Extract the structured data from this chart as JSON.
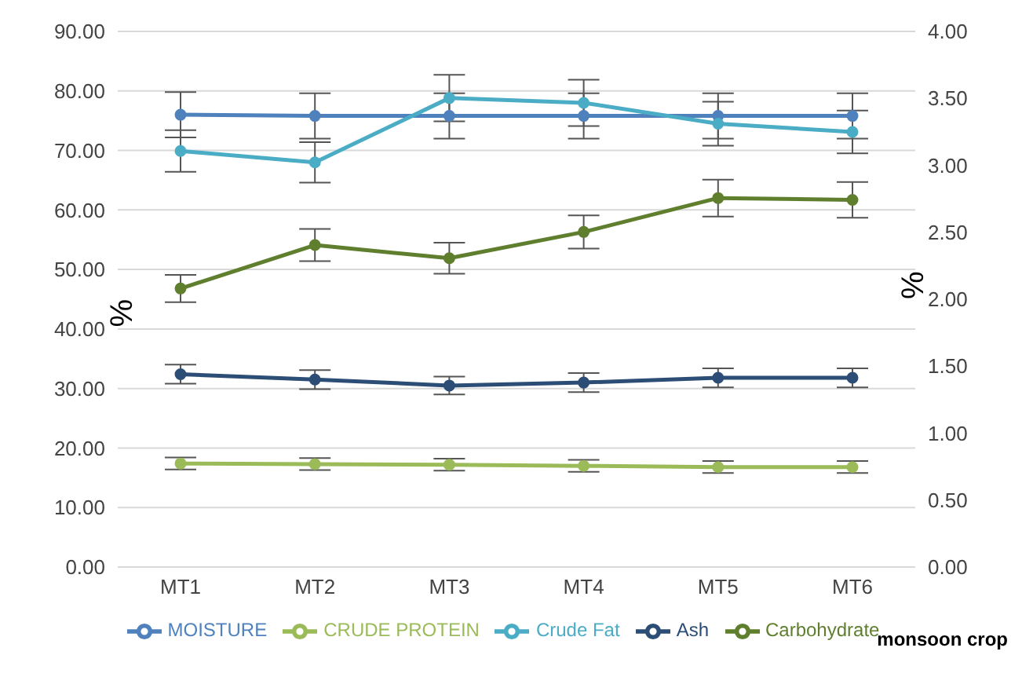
{
  "chart_data": {
    "type": "line",
    "categories": [
      "MT1",
      "MT2",
      "MT3",
      "MT4",
      "MT5",
      "MT6"
    ],
    "series": [
      {
        "name": "MOISTURE",
        "color": "#4f81bd",
        "values": [
          76.0,
          75.8,
          75.8,
          75.8,
          75.8,
          75.8
        ],
        "errors": [
          3.8,
          3.8,
          3.8,
          3.8,
          3.8,
          3.8
        ]
      },
      {
        "name": "CRUDE PROTEIN",
        "color": "#9bbb59",
        "values": [
          17.4,
          17.3,
          17.2,
          17.0,
          16.8,
          16.8
        ],
        "errors": [
          1.0,
          1.0,
          1.0,
          1.0,
          1.0,
          1.0
        ]
      },
      {
        "name": "Crude Fat",
        "color": "#4bacc6",
        "values": [
          69.9,
          68.0,
          78.8,
          78.0,
          74.5,
          73.1
        ],
        "errors": [
          3.5,
          3.4,
          3.9,
          3.9,
          3.7,
          3.6
        ]
      },
      {
        "name": "Ash",
        "color": "#2c4d75",
        "values": [
          32.4,
          31.5,
          30.5,
          31.0,
          31.8,
          31.8
        ],
        "errors": [
          1.6,
          1.6,
          1.5,
          1.6,
          1.6,
          1.6
        ]
      },
      {
        "name": "Carbohydrate",
        "color": "#5f7f2e",
        "values": [
          46.8,
          54.1,
          51.9,
          56.3,
          62.0,
          61.7
        ],
        "errors": [
          2.3,
          2.7,
          2.6,
          2.8,
          3.1,
          3.0
        ]
      }
    ],
    "ylabel": "%",
    "y2label": "%",
    "ylim": [
      0,
      90
    ],
    "yticks": [
      {
        "value": 0,
        "label": "0.00"
      },
      {
        "value": 10,
        "label": "10.00"
      },
      {
        "value": 20,
        "label": "20.00"
      },
      {
        "value": 30,
        "label": "30.00"
      },
      {
        "value": 40,
        "label": "40.00"
      },
      {
        "value": 50,
        "label": "50.00"
      },
      {
        "value": 60,
        "label": "60.00"
      },
      {
        "value": 70,
        "label": "70.00"
      },
      {
        "value": 80,
        "label": "80.00"
      },
      {
        "value": 90,
        "label": "90.00"
      }
    ],
    "y2lim": [
      0,
      4
    ],
    "y2ticks": [
      {
        "value": 0,
        "label": "0.00"
      },
      {
        "value": 0.5,
        "label": "0.50"
      },
      {
        "value": 1,
        "label": "1.00"
      },
      {
        "value": 1.5,
        "label": "1.50"
      },
      {
        "value": 2,
        "label": "2.00"
      },
      {
        "value": 2.5,
        "label": "2.50"
      },
      {
        "value": 3,
        "label": "3.00"
      },
      {
        "value": 3.5,
        "label": "3.50"
      },
      {
        "value": 4,
        "label": "4.00"
      }
    ],
    "grid": "y",
    "legend": "bottom",
    "marker": "circle",
    "line_style": "solid",
    "annotations": [
      "monsoon crop"
    ]
  }
}
